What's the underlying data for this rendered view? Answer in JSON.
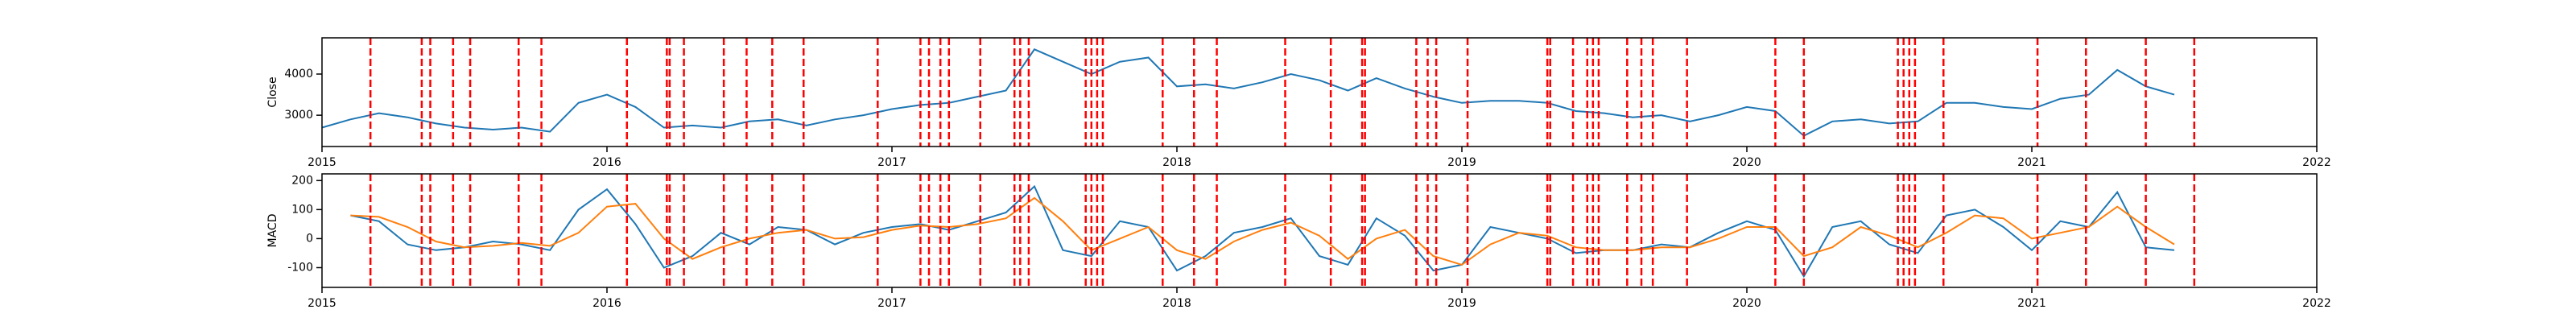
{
  "chart_data": [
    {
      "type": "line",
      "ylabel": "Close",
      "x": [
        2015.0,
        2015.1,
        2015.2,
        2015.3,
        2015.4,
        2015.5,
        2015.6,
        2015.7,
        2015.8,
        2015.9,
        2016.0,
        2016.1,
        2016.2,
        2016.3,
        2016.4,
        2016.5,
        2016.6,
        2016.7,
        2016.8,
        2016.9,
        2017.0,
        2017.1,
        2017.2,
        2017.3,
        2017.4,
        2017.5,
        2017.6,
        2017.7,
        2017.8,
        2017.9,
        2018.0,
        2018.1,
        2018.2,
        2018.3,
        2018.4,
        2018.5,
        2018.6,
        2018.7,
        2018.8,
        2018.9,
        2019.0,
        2019.1,
        2019.2,
        2019.3,
        2019.4,
        2019.5,
        2019.6,
        2019.7,
        2019.8,
        2019.9,
        2020.0,
        2020.1,
        2020.2,
        2020.3,
        2020.4,
        2020.5,
        2020.6,
        2020.7,
        2020.8,
        2020.9,
        2021.0,
        2021.1,
        2021.2,
        2021.3,
        2021.4,
        2021.5
      ],
      "series": [
        {
          "color": "#1f77b4",
          "values": [
            2700,
            2900,
            3050,
            2950,
            2800,
            2700,
            2650,
            2700,
            2600,
            3300,
            3500,
            3200,
            2700,
            2750,
            2700,
            2850,
            2900,
            2750,
            2900,
            3000,
            3150,
            3250,
            3300,
            3450,
            3600,
            4600,
            4300,
            4000,
            4300,
            4400,
            3700,
            3750,
            3650,
            3800,
            4000,
            3850,
            3600,
            3900,
            3650,
            3450,
            3300,
            3350,
            3350,
            3300,
            3100,
            3050,
            2950,
            3000,
            2850,
            3000,
            3200,
            3100,
            2500,
            2850,
            2900,
            2800,
            2850,
            3300,
            3300,
            3200,
            3150,
            3400,
            3500,
            4100,
            3700,
            3500
          ]
        }
      ],
      "xlim": [
        2015,
        2022
      ],
      "xticks": [
        2015,
        2016,
        2017,
        2018,
        2019,
        2020,
        2021,
        2022
      ],
      "ylim": [
        2240,
        4880
      ],
      "yticks": [
        3000,
        4000
      ],
      "vline_color": "#ff0000",
      "vlines": [
        2015.17,
        2015.35,
        2015.38,
        2015.46,
        2015.52,
        2015.69,
        2015.77,
        2016.07,
        2016.21,
        2016.22,
        2016.27,
        2016.41,
        2016.49,
        2016.58,
        2016.69,
        2016.95,
        2017.1,
        2017.13,
        2017.17,
        2017.2,
        2017.31,
        2017.43,
        2017.45,
        2017.48,
        2017.68,
        2017.7,
        2017.72,
        2017.74,
        2017.95,
        2018.06,
        2018.14,
        2018.38,
        2018.54,
        2018.65,
        2018.66,
        2018.84,
        2018.88,
        2018.91,
        2019.02,
        2019.3,
        2019.31,
        2019.39,
        2019.44,
        2019.46,
        2019.48,
        2019.58,
        2019.63,
        2019.67,
        2019.79,
        2020.1,
        2020.2,
        2020.53,
        2020.55,
        2020.57,
        2020.59,
        2020.69,
        2021.02,
        2021.19,
        2021.4,
        2021.57
      ]
    },
    {
      "type": "line",
      "ylabel": "MACD",
      "x": [
        2015.1,
        2015.2,
        2015.3,
        2015.4,
        2015.5,
        2015.6,
        2015.7,
        2015.8,
        2015.9,
        2016.0,
        2016.1,
        2016.2,
        2016.3,
        2016.4,
        2016.5,
        2016.6,
        2016.7,
        2016.8,
        2016.9,
        2017.0,
        2017.1,
        2017.2,
        2017.3,
        2017.4,
        2017.5,
        2017.6,
        2017.7,
        2017.8,
        2017.9,
        2018.0,
        2018.1,
        2018.2,
        2018.3,
        2018.4,
        2018.5,
        2018.6,
        2018.7,
        2018.8,
        2018.9,
        2019.0,
        2019.1,
        2019.2,
        2019.3,
        2019.4,
        2019.5,
        2019.6,
        2019.7,
        2019.8,
        2019.9,
        2020.0,
        2020.1,
        2020.2,
        2020.3,
        2020.4,
        2020.5,
        2020.6,
        2020.7,
        2020.8,
        2020.9,
        2021.0,
        2021.1,
        2021.2,
        2021.3,
        2021.4,
        2021.5
      ],
      "series": [
        {
          "color": "#1f77b4",
          "values": [
            80,
            60,
            -20,
            -40,
            -30,
            -10,
            -20,
            -40,
            100,
            170,
            50,
            -100,
            -60,
            20,
            -20,
            40,
            30,
            -20,
            20,
            40,
            50,
            30,
            60,
            90,
            180,
            -40,
            -60,
            60,
            40,
            -110,
            -60,
            20,
            40,
            70,
            -60,
            -90,
            70,
            10,
            -110,
            -90,
            40,
            20,
            0,
            -50,
            -40,
            -40,
            -20,
            -30,
            20,
            60,
            30,
            -130,
            40,
            60,
            -20,
            -50,
            80,
            100,
            40,
            -40,
            60,
            40,
            160,
            -30,
            -40
          ]
        },
        {
          "color": "#ff7f0e",
          "values": [
            80,
            75,
            40,
            -10,
            -30,
            -25,
            -15,
            -25,
            20,
            110,
            120,
            0,
            -70,
            -30,
            0,
            20,
            30,
            0,
            5,
            30,
            45,
            40,
            50,
            70,
            140,
            60,
            -40,
            0,
            40,
            -40,
            -70,
            -10,
            30,
            55,
            10,
            -70,
            0,
            30,
            -60,
            -90,
            -20,
            20,
            10,
            -30,
            -40,
            -40,
            -30,
            -30,
            0,
            40,
            40,
            -60,
            -30,
            40,
            10,
            -30,
            20,
            80,
            70,
            0,
            20,
            40,
            110,
            40,
            -20
          ]
        }
      ],
      "xlim": [
        2015,
        2022
      ],
      "xticks": [
        2015,
        2016,
        2017,
        2018,
        2019,
        2020,
        2021,
        2022
      ],
      "ylim": [
        -168,
        223
      ],
      "yticks": [
        -100,
        0,
        100,
        200
      ],
      "vline_color": "#ff0000",
      "vlines": [
        2015.17,
        2015.35,
        2015.38,
        2015.46,
        2015.52,
        2015.69,
        2015.77,
        2016.07,
        2016.21,
        2016.22,
        2016.27,
        2016.41,
        2016.49,
        2016.58,
        2016.69,
        2016.95,
        2017.1,
        2017.13,
        2017.17,
        2017.2,
        2017.31,
        2017.43,
        2017.45,
        2017.48,
        2017.68,
        2017.7,
        2017.72,
        2017.74,
        2017.95,
        2018.06,
        2018.14,
        2018.38,
        2018.54,
        2018.65,
        2018.66,
        2018.84,
        2018.88,
        2018.91,
        2019.02,
        2019.3,
        2019.31,
        2019.39,
        2019.44,
        2019.46,
        2019.48,
        2019.58,
        2019.63,
        2019.67,
        2019.79,
        2020.1,
        2020.2,
        2020.53,
        2020.55,
        2020.57,
        2020.59,
        2020.69,
        2021.02,
        2021.19,
        2021.4,
        2021.57
      ]
    }
  ]
}
